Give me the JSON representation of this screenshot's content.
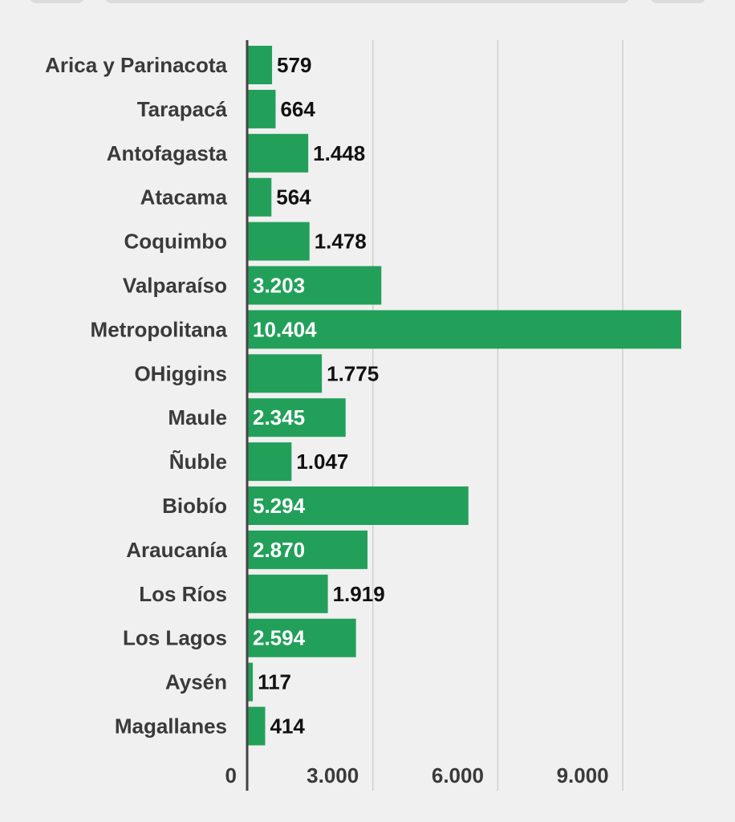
{
  "chart_data": {
    "type": "bar",
    "orientation": "horizontal",
    "categories": [
      "Arica y Parinacota",
      "Tarapacá",
      "Antofagasta",
      "Atacama",
      "Coquimbo",
      "Valparaíso",
      "Metropolitana",
      "OHiggins",
      "Maule",
      "Ñuble",
      "Biobío",
      "Araucanía",
      "Los Ríos",
      "Los Lagos",
      "Aysén",
      "Magallanes"
    ],
    "values": [
      579,
      664,
      1448,
      564,
      1478,
      3203,
      10404,
      1775,
      2345,
      1047,
      5294,
      2870,
      1919,
      2594,
      117,
      414
    ],
    "value_labels": [
      "579",
      "664",
      "1.448",
      "564",
      "1.478",
      "3.203",
      "10.404",
      "1.775",
      "2.345",
      "1.047",
      "5.294",
      "2.870",
      "1.919",
      "2.594",
      "117",
      "414"
    ],
    "x_ticks": [
      0,
      3000,
      6000,
      9000
    ],
    "x_tick_labels": [
      "0",
      "3.000",
      "6.000",
      "9.000"
    ],
    "xlim": [
      0,
      10404
    ],
    "grid": true,
    "colors": {
      "bar": "#22a05a",
      "grid": "#cfcfcf",
      "axis": "#444444",
      "label_inside": "#ffffff",
      "label_outside": "#111111"
    }
  }
}
